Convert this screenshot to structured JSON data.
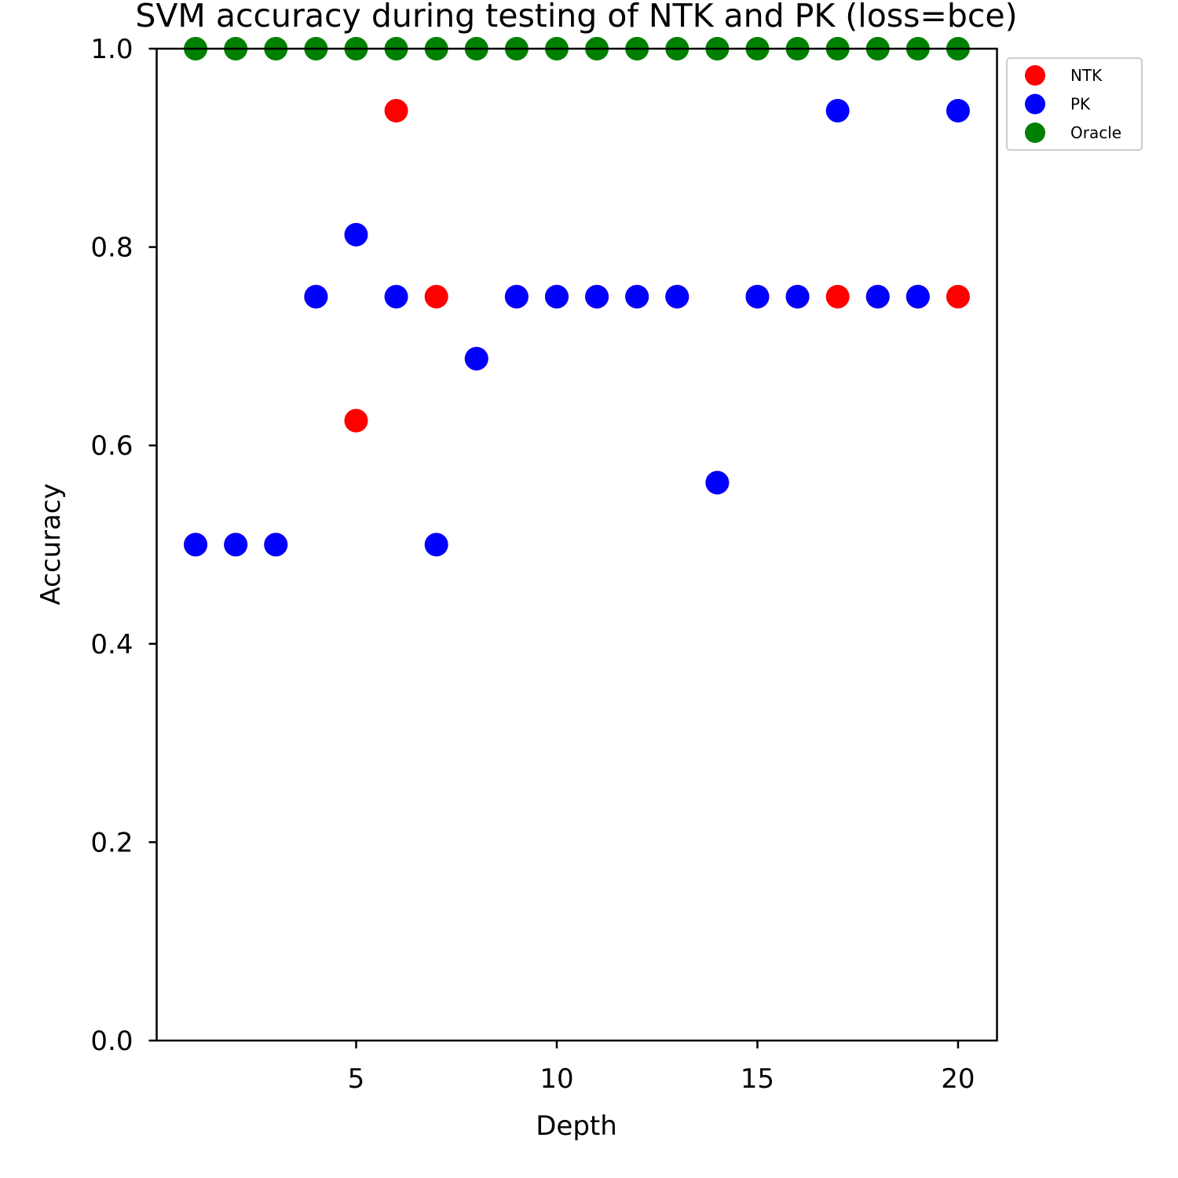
{
  "chart_data": {
    "type": "scatter",
    "title": "SVM accuracy during testing of NTK and PK (loss=bce)",
    "xlabel": "Depth",
    "ylabel": "Accuracy",
    "xlim": [
      0.03,
      20.97
    ],
    "ylim": [
      0.0,
      1.0
    ],
    "xticks": [
      5,
      10,
      15,
      20
    ],
    "xtick_labels": [
      "5",
      "10",
      "15",
      "20"
    ],
    "yticks": [
      0.0,
      0.2,
      0.4,
      0.6,
      0.8,
      1.0
    ],
    "ytick_labels": [
      "0.0",
      "0.2",
      "0.4",
      "0.6",
      "0.8",
      "1.0"
    ],
    "grid": false,
    "legend_position": "outside-top-right",
    "x": [
      1,
      2,
      3,
      4,
      5,
      6,
      7,
      8,
      9,
      10,
      11,
      12,
      13,
      14,
      15,
      16,
      17,
      18,
      19,
      20
    ],
    "series": [
      {
        "name": "NTK",
        "color": "#ff0000",
        "values": [
          0.5,
          0.5,
          0.5,
          0.75,
          0.625,
          0.9375,
          0.75,
          0.6875,
          0.75,
          0.75,
          0.75,
          0.75,
          0.75,
          0.5625,
          0.75,
          0.75,
          0.75,
          0.75,
          0.75,
          0.75
        ]
      },
      {
        "name": "PK",
        "color": "#0000ff",
        "values": [
          0.5,
          0.5,
          0.5,
          0.75,
          0.8125,
          0.75,
          0.5,
          0.6875,
          0.75,
          0.75,
          0.75,
          0.75,
          0.75,
          0.5625,
          0.75,
          0.75,
          0.9375,
          0.75,
          0.75,
          0.9375
        ]
      },
      {
        "name": "Oracle",
        "color": "#008000",
        "values": [
          1.0,
          1.0,
          1.0,
          1.0,
          1.0,
          1.0,
          1.0,
          1.0,
          1.0,
          1.0,
          1.0,
          1.0,
          1.0,
          1.0,
          1.0,
          1.0,
          1.0,
          1.0,
          1.0,
          1.0
        ]
      }
    ]
  }
}
